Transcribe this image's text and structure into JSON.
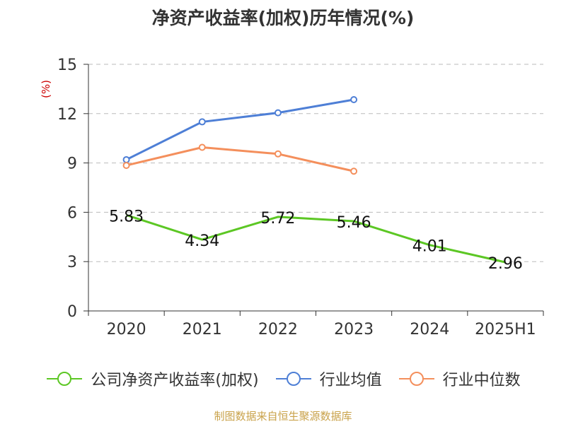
{
  "title": "净资产收益率(加权)历年情况(%)",
  "source": "制图数据来自恒生聚源数据库",
  "chart_data": {
    "type": "line",
    "categories": [
      "2020",
      "2021",
      "2022",
      "2023",
      "2024",
      "2025H1"
    ],
    "ylabel": "(%)",
    "ylim": [
      0,
      15
    ],
    "yticks": [
      0,
      3,
      6,
      9,
      12,
      15
    ],
    "grid": true,
    "legend_position": "bottom",
    "series": [
      {
        "name": "公司净资产收益率(加权)",
        "color": "#5cc724",
        "values": [
          5.83,
          4.34,
          5.72,
          5.46,
          4.01,
          2.96
        ],
        "data_labels": [
          "5.83",
          "4.34",
          "5.72",
          "5.46",
          "4.01",
          "2.96"
        ],
        "markers": false
      },
      {
        "name": "行业均值",
        "color": "#4e7fd6",
        "values": [
          9.2,
          11.5,
          12.05,
          12.85,
          null,
          null
        ],
        "markers": true
      },
      {
        "name": "行业中位数",
        "color": "#f48f5c",
        "values": [
          8.85,
          9.95,
          9.55,
          8.5,
          null,
          null
        ],
        "markers": true
      }
    ]
  }
}
